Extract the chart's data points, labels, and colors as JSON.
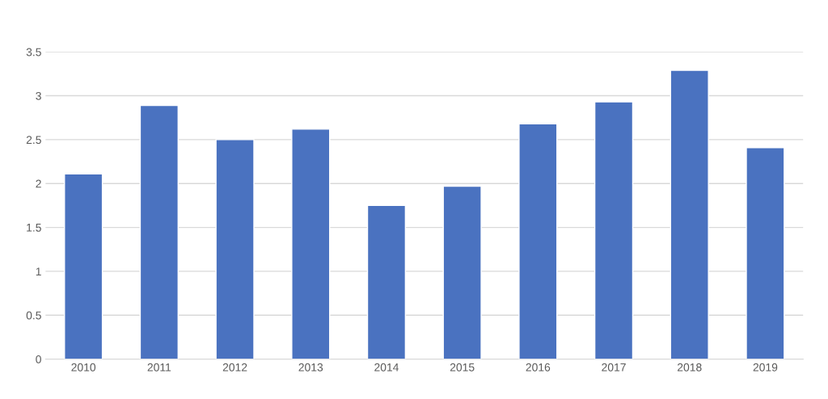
{
  "chart_data": {
    "type": "bar",
    "categories": [
      "2010",
      "2011",
      "2012",
      "2013",
      "2014",
      "2015",
      "2016",
      "2017",
      "2018",
      "2019"
    ],
    "values": [
      2.11,
      2.89,
      2.5,
      2.62,
      1.75,
      1.97,
      2.68,
      2.93,
      3.29,
      2.41
    ],
    "color": "#4a72c0",
    "ylim": [
      0,
      3.5
    ],
    "yticks": [
      0,
      {
        "value": 0.5,
        "label": "0.5"
      },
      1,
      {
        "value": 1.5,
        "label": "1.5"
      },
      2,
      {
        "value": 2.5,
        "label": "2.5"
      },
      3,
      {
        "value": 3.5,
        "label": "3.5"
      }
    ],
    "grid": "y"
  }
}
